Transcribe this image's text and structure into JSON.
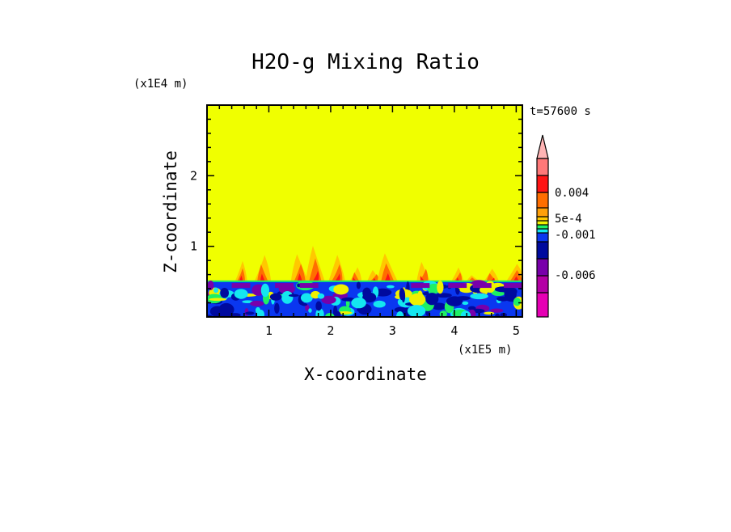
{
  "chart_data": {
    "type": "heatmap",
    "title": "H2O-g Mixing Ratio",
    "xlabel": "X-coordinate",
    "ylabel": "Z-coordinate",
    "x_units": "(x1E5 m)",
    "y_units": "(x1E4 m)",
    "time_label": "t=57600 s",
    "xlim": [
      0,
      5.1
    ],
    "ylim": [
      0,
      3.0
    ],
    "x_ticks": [
      1,
      2,
      3,
      4,
      5
    ],
    "y_ticks": [
      1,
      2
    ],
    "grid": false,
    "colorbar": {
      "labels": [
        {
          "text": "0.004",
          "index": 10
        },
        {
          "text": "5e-4",
          "index": 7
        },
        {
          "text": "-0.001",
          "index": 5
        },
        {
          "text": "-0.006",
          "index": 2
        }
      ],
      "colors_bottom_to_top": [
        "#e600b4",
        "#b400a5",
        "#7800aa",
        "#000a9e",
        "#0a37f0",
        "#14e6f0",
        "#1ef064",
        "#f0f000",
        "#ffc800",
        "#ffa00a",
        "#ff6e00",
        "#ff1414",
        "#ff7878"
      ],
      "overflow_color": "#ffb4b4"
    },
    "background_color": "#f0ff00",
    "description_regions": {
      "upper_layer_value": "approximately 0",
      "mixed_layer_top": 0.5
    }
  }
}
